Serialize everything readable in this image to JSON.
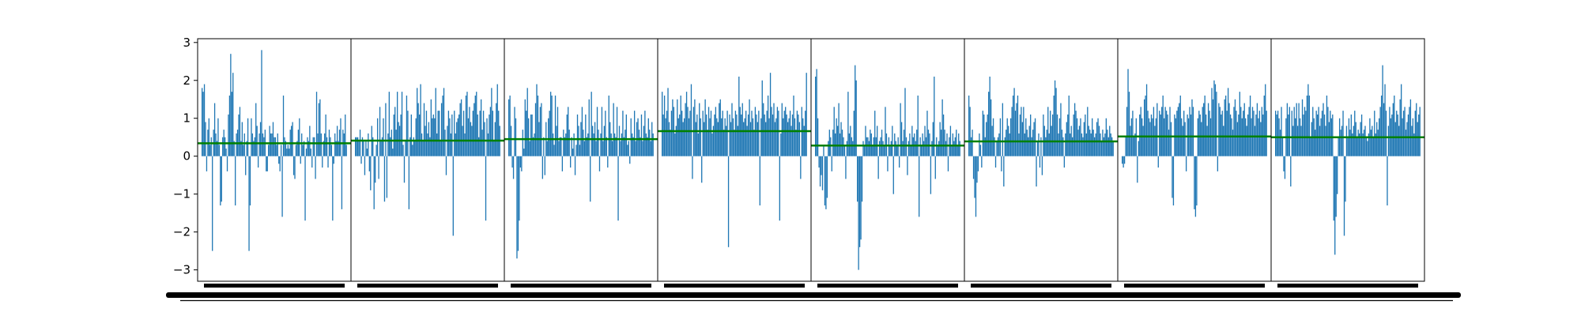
{
  "colors": {
    "bars": "#1f77b4",
    "mean_line": "#008000",
    "axes": "#000000",
    "background": "#ffffff"
  },
  "chart_data": {
    "type": "bar",
    "title": "",
    "xlabel": "",
    "ylabel": "",
    "ylim": [
      -3.3,
      3.1
    ],
    "yticks": [
      3,
      2,
      1,
      0,
      -1,
      -2,
      -3
    ],
    "ytick_labels": [
      "3",
      "2",
      "1",
      "0",
      "−1",
      "−2",
      "−3"
    ],
    "grid": false,
    "legend": "none",
    "panels": [
      {
        "panel": 1,
        "mean": 0.34
      },
      {
        "panel": 2,
        "mean": 0.41
      },
      {
        "panel": 3,
        "mean": 0.45
      },
      {
        "panel": 4,
        "mean": 0.66
      },
      {
        "panel": 5,
        "mean": 0.28
      },
      {
        "panel": 6,
        "mean": 0.39
      },
      {
        "panel": 7,
        "mean": 0.52
      },
      {
        "panel": 8,
        "mean": 0.5
      }
    ],
    "series": [
      {
        "values": [
          [
            1.8,
            1.7,
            1.9,
            0.9,
            -0.4,
            0.7,
            1.0,
            0.3,
            0.5,
            -2.5,
            0.7,
            1.4,
            0.6,
            0.4,
            1.0,
            0.3,
            -1.3,
            -1.2,
            0.5,
            0.7,
            0.5,
            0.2,
            -0.4,
            1.1,
            1.6,
            2.7,
            1.7,
            2.2,
            0.4,
            -1.3,
            0.6,
            0.7,
            1.1,
            1.3,
            0.4,
            0.9,
            0.3,
            0.6,
            -0.5,
            0.4,
            1.0,
            -2.5,
            -1.3,
            1.0,
            0.6,
            0.4,
            0.5,
            1.4,
            0.8,
            -0.3,
            0.6,
            0.9,
            2.8,
            0.6,
            0.5,
            0.7,
            -0.4,
            -0.4,
            0.3,
            0.8,
            0.6,
            0.6,
            0.9,
            0.5,
            0.5,
            0.3,
            0.6,
            -0.2,
            -0.4,
            0.3,
            -1.6,
            1.6,
            0.5,
            0.4,
            0.2,
            0.3,
            0.2,
            0.7,
            0.8,
            0.9,
            -0.5,
            -0.6,
            0.3,
            0.4,
            0.7,
            1.0,
            -0.2,
            0.6,
            0.3,
            0.4,
            -1.7,
            0.2,
            0.5,
            0.4,
            0.8,
            0.2,
            -0.3,
            0.5,
            0.5,
            -0.6,
            1.7,
            0.6,
            1.4,
            1.5,
            0.6,
            -0.3,
            0.4,
            0.6,
            1.1,
            0.5,
            -0.3,
            0.7,
            0.5,
            0.3,
            -1.7,
            -0.2,
            0.6,
            0.4,
            0.8,
            0.4,
            0.7,
            1.0,
            -1.4,
            0.7,
            0.6,
            1.1,
            0.3
          ],
          [
            0.5,
            0.5,
            0.5,
            0.4,
            0.7,
            -0.2,
            0.5,
            0.4,
            -0.5,
            0.4,
            0.2,
            0.6,
            -0.4,
            -0.9,
            0.8,
            0.5,
            -1.4,
            -0.7,
            0.3,
            1.0,
            -0.6,
            1.3,
            0.4,
            0.5,
            1.0,
            -1.2,
            1.4,
            -1.1,
            0.6,
            1.7,
            0.5,
            0.7,
            0.2,
            1.1,
            1.3,
            0.7,
            1.7,
            0.9,
            0.8,
            1.1,
            1.7,
            0.3,
            -0.7,
            0.4,
            1.6,
            1.2,
            -1.4,
            0.5,
            1.1,
            0.3,
            0.5,
            0.4,
            1.0,
            1.8,
            1.4,
            1.1,
            1.9,
            0.6,
            0.4,
            1.4,
            0.8,
            1.2,
            0.6,
            0.9,
            0.5,
            1.5,
            1.0,
            1.1,
            1.0,
            1.8,
            0.6,
            1.2,
            1.2,
            0.4,
            1.4,
            1.6,
            1.8,
            0.7,
            -0.5,
            0.8,
            1.2,
            1.0,
            0.6,
            1.1,
            -2.1,
            1.2,
            0.6,
            0.9,
            1.0,
            1.1,
            1.4,
            1.5,
            0.8,
            1.2,
            0.6,
            1.6,
            1.7,
            1.0,
            1.3,
            0.9,
            0.8,
            1.2,
            1.4,
            1.6,
            1.7,
            1.1,
            0.5,
            1.2,
            1.5,
            0.7,
            1.2,
            0.9,
            -1.7,
            1.0,
            0.6,
            1.1,
            1.3,
            1.8,
            1.2,
            0.4,
            0.9,
            1.4,
            1.9,
            1.2,
            0.8
          ],
          [
            1.5,
            1.6,
            0.8,
            -0.3,
            -0.6,
            1.3,
            1.0,
            -2.7,
            -2.5,
            -1.7,
            -0.3,
            -0.4,
            0.7,
            0.2,
            1.5,
            1.2,
            1.8,
            1.0,
            0.4,
            1.1,
            1.1,
            0.5,
            0.6,
            1.4,
            1.9,
            1.6,
            0.9,
            1.3,
            1.4,
            -0.6,
            0.5,
            -0.5,
            0.9,
            0.4,
            1.0,
            1.2,
            1.7,
            1.6,
            0.6,
            0.3,
            1.6,
            0.8,
            1.3,
            0.4,
            0.5,
            0.5,
            -0.4,
            0.7,
            0.5,
            0.6,
            1.1,
            1.3,
            0.7,
            -0.3,
            0.5,
            0.2,
            0.6,
            -0.5,
            0.3,
            1.1,
            0.8,
            0.3,
            0.9,
            1.3,
            0.7,
            0.4,
            1.1,
            0.5,
            0.6,
            1.5,
            -1.2,
            1.7,
            0.8,
            0.6,
            0.9,
            0.4,
            1.3,
            0.7,
            -0.4,
            0.6,
            1.3,
            0.4,
            0.8,
            1.2,
            0.5,
            -0.3,
            1.6,
            0.9,
            0.6,
            0.4,
            1.4,
            0.6,
            0.5,
            1.3,
            -1.7,
            0.8,
            0.4,
            0.6,
            1.2,
            0.5,
            0.7,
            1.1,
            0.3,
            0.4,
            -0.2,
            1.0,
            0.6,
            0.5,
            1.2,
            0.4,
            0.9,
            1.0,
            0.7,
            0.5,
            1.1,
            0.4,
            0.8,
            1.2,
            0.6,
            0.5,
            1.0,
            0.7,
            0.4,
            0.9,
            0.6
          ],
          [
            1.7,
            1.1,
            1.6,
            1.0,
            1.2,
            1.8,
            0.9,
            0.7,
            1.2,
            1.5,
            1.3,
            0.6,
            0.8,
            1.5,
            1.0,
            1.1,
            1.6,
            1.2,
            0.9,
            1.0,
            1.4,
            1.7,
            1.3,
            1.0,
            1.2,
            1.9,
            -0.6,
            1.3,
            1.5,
            0.9,
            1.1,
            0.6,
            1.4,
            1.0,
            -0.7,
            1.2,
            0.9,
            1.5,
            1.1,
            0.7,
            1.3,
            1.0,
            1.2,
            0.6,
            0.8,
            1.1,
            1.3,
            1.0,
            0.9,
            1.4,
            1.5,
            1.0,
            1.2,
            0.7,
            1.0,
            0.8,
            1.2,
            -2.4,
            1.1,
            0.9,
            1.4,
            1.0,
            0.7,
            1.2,
            1.1,
            0.8,
            2.1,
            1.3,
            1.1,
            1.4,
            0.9,
            1.0,
            1.2,
            0.8,
            1.1,
            1.5,
            0.9,
            1.2,
            1.0,
            0.7,
            1.3,
            1.1,
            0.9,
            1.2,
            -1.3,
            1.0,
            2.0,
            1.4,
            1.1,
            0.9,
            1.2,
            1.6,
            1.0,
            2.2,
            1.3,
            1.1,
            1.4,
            0.9,
            1.0,
            1.3,
            1.2,
            -1.7,
            0.6,
            1.4,
            1.0,
            1.2,
            1.3,
            1.1,
            0.9,
            1.0,
            1.2,
            0.8,
            1.1,
            1.6,
            1.0,
            0.7,
            1.2,
            1.1,
            0.9,
            -0.6,
            1.3,
            1.0,
            0.8,
            1.2,
            2.2
          ],
          [
            2.1,
            2.3,
            1.0,
            -0.3,
            -0.8,
            -0.5,
            -0.9,
            0.3,
            -1.3,
            -1.4,
            -1.1,
            0.4,
            0.7,
            0.5,
            -0.4,
            0.7,
            1.3,
            0.6,
            1.0,
            0.8,
            1.4,
            0.6,
            0.9,
            0.7,
            0.5,
            0.3,
            -0.6,
            0.4,
            1.7,
            0.6,
            0.8,
            0.5,
            0.4,
            1.2,
            2.4,
            2.0,
            -1.2,
            -3.0,
            -2.4,
            -2.2,
            -1.2,
            0.4,
            0.3,
            0.8,
            0.5,
            0.5,
            0.4,
            0.7,
            0.6,
            0.3,
            0.5,
            1.2,
            0.5,
            0.8,
            -0.6,
            0.4,
            0.5,
            0.7,
            0.4,
            0.3,
            1.3,
            0.6,
            -0.4,
            0.5,
            0.3,
            0.4,
            0.8,
            -1.0,
            0.6,
            0.4,
            0.3,
            0.5,
            -0.3,
            1.4,
            0.9,
            0.4,
            0.7,
            1.8,
            0.5,
            -0.5,
            0.4,
            0.6,
            0.3,
            0.8,
            0.5,
            0.6,
            0.4,
            0.7,
            1.6,
            -1.6,
            0.5,
            0.3,
            0.6,
            0.4,
            0.8,
            0.5,
            1.2,
            0.7,
            0.6,
            -1.0,
            0.4,
            0.9,
            2.1,
            -0.6,
            0.5,
            0.3,
            0.4,
            0.9,
            0.7,
            1.5,
            1.1,
            0.7,
            0.4,
            0.6,
            -0.4,
            0.5,
            0.8,
            0.3,
            0.6,
            0.4,
            0.5,
            0.7,
            0.3,
            0.6,
            0.4
          ],
          [
            1.6,
            1.3,
            0.5,
            0.7,
            -0.6,
            -1.1,
            -1.6,
            -0.7,
            -0.4,
            0.6,
            0.3,
            -0.3,
            1.2,
            1.1,
            0.5,
            0.9,
            1.1,
            1.7,
            2.1,
            1.5,
            0.8,
            1.0,
            0.5,
            -0.3,
            0.4,
            0.5,
            0.6,
            1.0,
            -0.4,
            1.4,
            -0.8,
            0.5,
            0.7,
            1.0,
            0.8,
            0.6,
            1.0,
            1.3,
            1.6,
            1.8,
            1.2,
            1.4,
            1.6,
            0.6,
            1.1,
            1.3,
            0.9,
            1.3,
            0.6,
            1.0,
            0.7,
            0.5,
            0.8,
            1.1,
            0.5,
            0.7,
            0.9,
            1.0,
            -0.8,
            0.4,
            0.6,
            -0.3,
            0.5,
            -0.5,
            1.1,
            0.8,
            0.5,
            0.7,
            1.3,
            0.6,
            1.2,
            0.8,
            1.1,
            1.6,
            2.0,
            1.8,
            1.1,
            0.6,
            1.0,
            1.4,
            0.7,
            0.5,
            -0.3,
            0.6,
            0.9,
            1.1,
            1.6,
            0.6,
            0.8,
            0.5,
            1.1,
            1.4,
            1.2,
            1.0,
            0.7,
            0.8,
            1.0,
            0.6,
            0.5,
            0.9,
            1.1,
            0.6,
            1.3,
            0.8,
            0.7,
            0.6,
            1.0,
            0.7,
            0.5,
            0.6,
            0.9,
            1.0,
            0.8,
            0.6,
            0.4,
            0.7,
            0.5,
            0.6,
            1.0,
            0.7,
            0.5,
            0.8,
            0.6,
            0.5,
            0.4
          ],
          [
            -0.2,
            -0.3,
            -0.2,
            0.5,
            1.3,
            2.3,
            1.7,
            0.8,
            1.0,
            1.2,
            0.5,
            0.6,
            1.0,
            -0.7,
            0.4,
            1.1,
            1.3,
            1.0,
            0.8,
            1.5,
            1.6,
            1.9,
            1.2,
            1.0,
            0.9,
            1.1,
            1.0,
            1.3,
            0.8,
            1.0,
            1.4,
            -0.3,
            1.2,
            1.1,
            1.3,
            1.6,
            1.0,
            1.3,
            1.2,
            1.1,
            0.7,
            1.3,
            0.9,
            -1.1,
            -1.3,
            1.1,
            1.0,
            1.2,
            1.3,
            1.4,
            1.6,
            1.0,
            0.8,
            1.2,
            0.9,
            -0.4,
            1.1,
            1.0,
            1.3,
            1.1,
            1.5,
            1.3,
            -1.4,
            -1.6,
            -1.3,
            1.0,
            1.2,
            1.1,
            0.9,
            1.3,
            1.4,
            1.6,
            1.1,
            0.8,
            1.4,
            1.2,
            1.0,
            1.8,
            1.5,
            2.0,
            1.9,
            1.7,
            -0.4,
            1.4,
            1.3,
            1.1,
            1.2,
            0.8,
            1.5,
            1.6,
            1.2,
            1.8,
            1.4,
            1.1,
            1.0,
            0.7,
            1.3,
            1.5,
            1.2,
            0.9,
            1.1,
            1.7,
            1.3,
            1.0,
            1.2,
            1.4,
            1.0,
            0.8,
            1.1,
            1.3,
            1.6,
            1.0,
            1.3,
            1.2,
            0.8,
            1.1,
            1.4,
            1.0,
            1.2,
            0.9,
            1.3,
            1.1,
            1.6,
            1.9,
            1.2
          ],
          [
            1.2,
            1.1,
            1.2,
            1.0,
            0.7,
            1.3,
            0.5,
            -0.4,
            -0.6,
            1.0,
            1.4,
            1.1,
            1.3,
            -0.8,
            1.2,
            0.8,
            1.3,
            1.0,
            1.4,
            0.8,
            1.4,
            1.0,
            0.8,
            1.5,
            1.1,
            1.3,
            1.2,
            1.6,
            1.9,
            1.6,
            0.5,
            0.9,
            1.3,
            1.0,
            0.7,
            1.2,
            1.1,
            1.3,
            0.8,
            1.0,
            1.2,
            1.4,
            1.1,
            0.8,
            1.6,
            1.3,
            0.9,
            1.2,
            1.0,
            1.1,
            -1.7,
            -2.6,
            -1.6,
            -1.0,
            0.5,
            1.0,
            0.7,
            0.8,
            1.2,
            -2.1,
            -1.2,
            0.8,
            0.5,
            1.0,
            0.7,
            1.1,
            0.6,
            0.8,
            1.2,
            0.9,
            0.5,
            0.7,
            0.6,
            0.9,
            1.1,
            0.6,
            0.7,
            0.8,
            0.5,
            0.4,
            0.6,
            1.0,
            0.7,
            0.8,
            0.5,
            1.2,
            0.6,
            0.9,
            0.7,
            1.0,
            1.3,
            1.6,
            2.4,
            1.4,
            1.9,
            1.2,
            -1.3,
            0.8,
            1.3,
            1.0,
            1.1,
            1.4,
            1.6,
            0.9,
            1.2,
            1.1,
            0.8,
            1.5,
            1.9,
            1.0,
            1.2,
            1.3,
            0.7,
            0.9,
            1.1,
            1.3,
            1.5,
            0.8,
            1.0,
            0.6,
            1.2,
            1.4,
            0.9,
            1.1,
            1.3
          ]
        ]
      }
    ]
  }
}
